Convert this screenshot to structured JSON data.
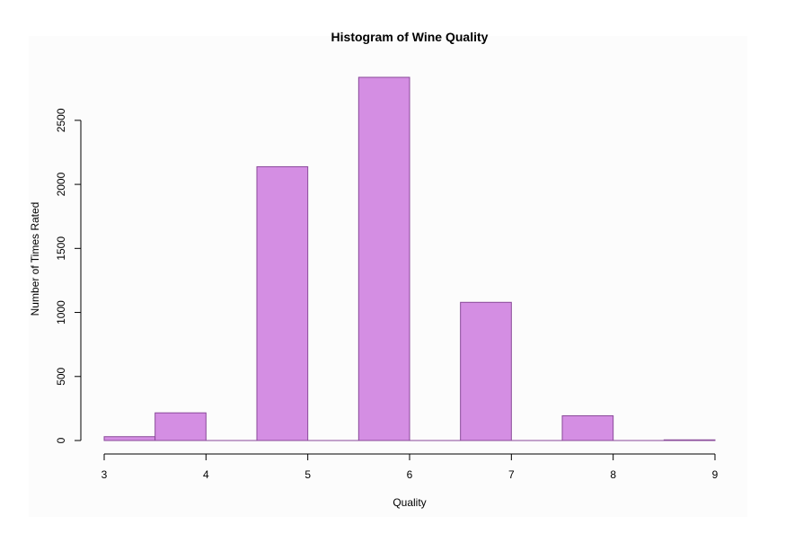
{
  "chart_data": {
    "type": "bar",
    "title": "Histogram of Wine Quality",
    "xlabel": "Quality",
    "ylabel": "Number of Times Rated",
    "bins": [
      {
        "start": 3.0,
        "end": 3.5,
        "count": 30
      },
      {
        "start": 3.5,
        "end": 4.0,
        "count": 216
      },
      {
        "start": 4.0,
        "end": 4.5,
        "count": 0
      },
      {
        "start": 4.5,
        "end": 5.0,
        "count": 2138
      },
      {
        "start": 5.0,
        "end": 5.5,
        "count": 0
      },
      {
        "start": 5.5,
        "end": 6.0,
        "count": 2836
      },
      {
        "start": 6.0,
        "end": 6.5,
        "count": 0
      },
      {
        "start": 6.5,
        "end": 7.0,
        "count": 1079
      },
      {
        "start": 7.0,
        "end": 7.5,
        "count": 0
      },
      {
        "start": 7.5,
        "end": 8.0,
        "count": 193
      },
      {
        "start": 8.0,
        "end": 8.5,
        "count": 0
      },
      {
        "start": 8.5,
        "end": 9.0,
        "count": 5
      }
    ],
    "xlim": [
      3,
      9
    ],
    "ylim": [
      0,
      2836
    ],
    "x_ticks": [
      "3",
      "4",
      "5",
      "6",
      "7",
      "8",
      "9"
    ],
    "y_ticks": [
      "0",
      "500",
      "1000",
      "1500",
      "2000",
      "2500"
    ],
    "grid": false,
    "legend": "none",
    "bar_fill": "#d48ee3",
    "bar_stroke": "#8a4a9a"
  }
}
